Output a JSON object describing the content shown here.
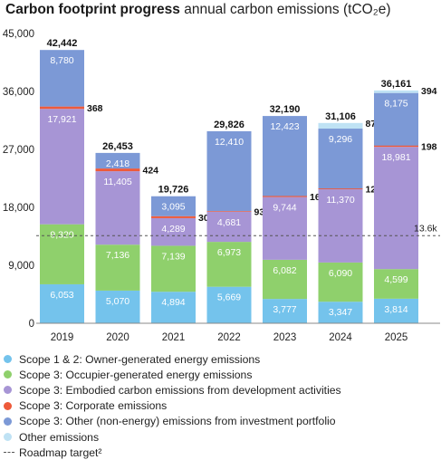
{
  "title": "Carbon footprint progress",
  "subtitle": "annual carbon emissions (tCO₂e)",
  "chart_data": {
    "type": "bar",
    "stacked": true,
    "title": "Carbon footprint progress",
    "subtitle": "annual carbon emissions (tCO₂e)",
    "categories": [
      "2019",
      "2020",
      "2021",
      "2022",
      "2023",
      "2024",
      "2025"
    ],
    "ylim": [
      0,
      45000
    ],
    "yticks": [
      "0",
      "9,000",
      "18,000",
      "27,000",
      "36,000",
      "45,000"
    ],
    "ytick_values": [
      0,
      9000,
      18000,
      27000,
      36000,
      45000
    ],
    "grid": false,
    "legend_position": "bottom",
    "series": [
      {
        "name": "Scope 1 & 2: Owner-generated energy emissions",
        "color": "#74c3ec",
        "values": [
          6053,
          5070,
          4894,
          5669,
          3777,
          3347,
          3814
        ],
        "labels": [
          "6,053",
          "5,070",
          "4,894",
          "5,669",
          "3,777",
          "3,347",
          "3,814"
        ]
      },
      {
        "name": "Scope 3: Occupier-generated energy emissions",
        "color": "#8fd06c",
        "values": [
          9320,
          7136,
          7139,
          6973,
          6082,
          6090,
          4599
        ],
        "labels": [
          "9,320",
          "7,136",
          "7,139",
          "6,973",
          "6,082",
          "6,090",
          "4,599"
        ]
      },
      {
        "name": "Scope 3: Embodied carbon emissions from development activities",
        "color": "#a795d5",
        "values": [
          17921,
          11405,
          4289,
          4681,
          9744,
          11370,
          18981
        ],
        "labels": [
          "17,921",
          "11,405",
          "4,289",
          "4,681",
          "9,744",
          "11,370",
          "18,981"
        ]
      },
      {
        "name": "Scope 3: Corporate emissions",
        "color": "#ee5a3a",
        "values": [
          368,
          424,
          309,
          93,
          164,
          127,
          198
        ],
        "labels": [
          "368",
          "424",
          "309",
          "93",
          "164",
          "127",
          "198"
        ]
      },
      {
        "name": "Scope 3: Other (non-energy) emissions from investment portfolio",
        "color": "#7c99d6",
        "values": [
          8780,
          2418,
          3095,
          12410,
          12423,
          9296,
          8175
        ],
        "labels": [
          "8,780",
          "2,418",
          "3,095",
          "12,410",
          "12,423",
          "9,296",
          "8,175"
        ]
      },
      {
        "name": "Other emissions",
        "color": "#bfe2f4",
        "values": [
          0,
          0,
          0,
          0,
          0,
          876,
          394
        ],
        "labels": [
          "",
          "",
          "",
          "",
          "",
          "876",
          "394"
        ]
      }
    ],
    "totals": [
      42442,
      26453,
      19726,
      29826,
      32190,
      31106,
      36161
    ],
    "total_labels": [
      "42,442",
      "26,453",
      "19,726",
      "29,826",
      "32,190",
      "31,106",
      "36,161"
    ],
    "roadmap_target": 13600,
    "roadmap_label": "13.6k",
    "roadmap_legend": "Roadmap target²"
  }
}
